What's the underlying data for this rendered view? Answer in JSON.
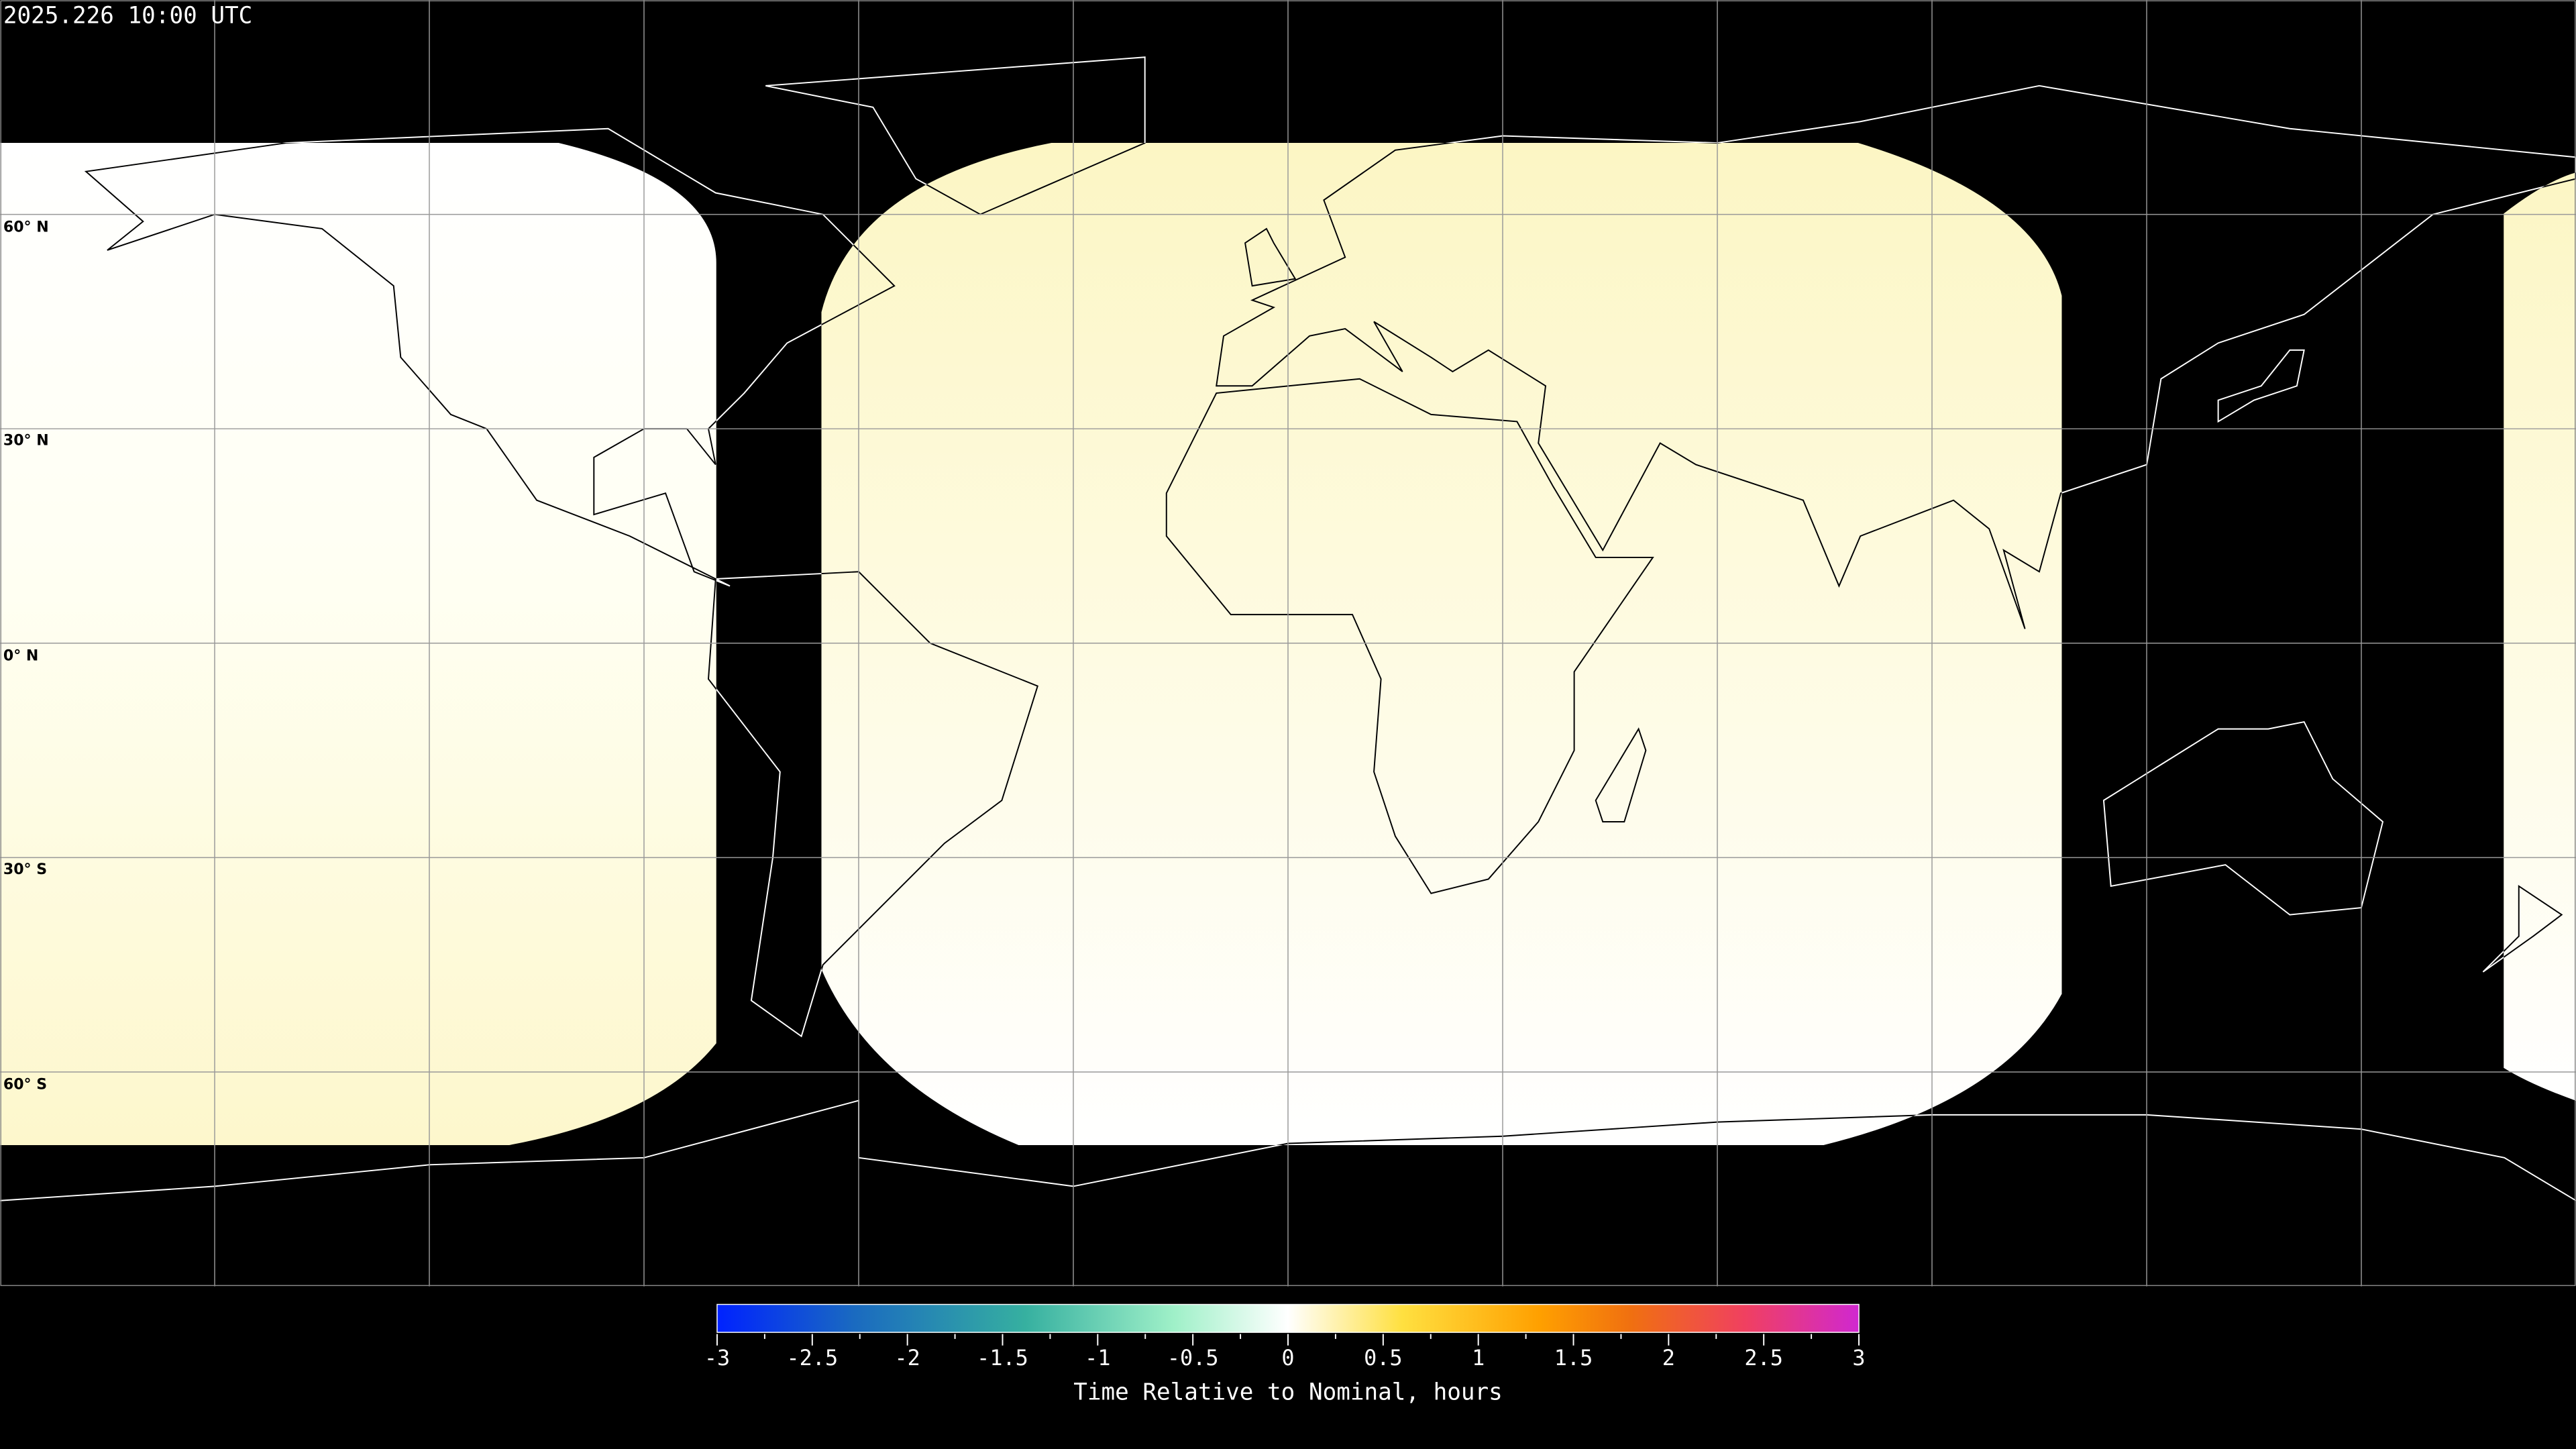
{
  "title": "2025.226 10:00 UTC",
  "map": {
    "projection": "equirectangular",
    "lon_range": [
      -180,
      180
    ],
    "lat_range": [
      -90,
      90
    ],
    "grid_spacing_deg": 30,
    "background": "#000000",
    "grid_color": "#000000",
    "coastline_color_on_data": "#000000",
    "coastline_color_off_data": "#ffffff",
    "lat_labels": [
      "60° N",
      "30° N",
      "0° N",
      "30° S",
      "60° S"
    ]
  },
  "colorbar": {
    "label": "Time Relative to Nominal, hours",
    "range": [
      -3,
      3
    ],
    "tick_labels": [
      "-3",
      "-2.5",
      "-2",
      "-1.5",
      "-1",
      "-0.5",
      "0",
      "0.5",
      "1",
      "1.5",
      "2",
      "2.5",
      "3"
    ],
    "colors": [
      "#0022ff",
      "#1a6ac0",
      "#36b0a0",
      "#9ff0c8",
      "#ffffff",
      "#ffe040",
      "#ffa000",
      "#f06020",
      "#f04060",
      "#d028d0"
    ]
  }
}
